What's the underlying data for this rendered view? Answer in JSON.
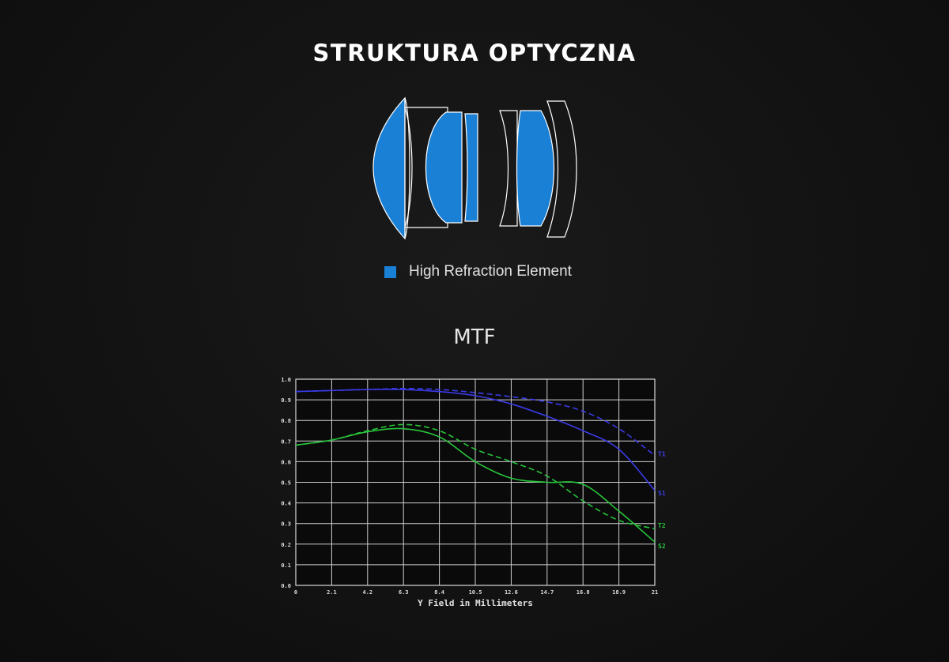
{
  "header": {
    "title": "STRUKTURA OPTYCZNA"
  },
  "legend": {
    "label": "High Refraction Element",
    "color": "#1a80d6"
  },
  "mtf": {
    "title": "MTF"
  },
  "chart_data": {
    "type": "line",
    "title": "MTF",
    "xlabel": "Y Field in Millimeters",
    "ylabel": "",
    "xlim": [
      0,
      21
    ],
    "ylim": [
      0,
      1.0
    ],
    "grid": true,
    "x_ticks": [
      "0",
      "2.1",
      "4.2",
      "6.3",
      "8.4",
      "10.5",
      "12.6",
      "14.7",
      "16.8",
      "18.9",
      "21"
    ],
    "y_ticks": [
      "0.0",
      "0.1",
      "0.2",
      "0.3",
      "0.4",
      "0.5",
      "0.6",
      "0.7",
      "0.8",
      "0.9",
      "1.0"
    ],
    "x": [
      0,
      2.1,
      4.2,
      6.3,
      8.4,
      10.5,
      12.6,
      14.7,
      16.8,
      18.9,
      21
    ],
    "series": [
      {
        "name": "T1",
        "color": "#3b3be8",
        "dashed": true,
        "values": [
          0.94,
          0.945,
          0.95,
          0.955,
          0.95,
          0.935,
          0.915,
          0.89,
          0.845,
          0.76,
          0.63
        ]
      },
      {
        "name": "S1",
        "color": "#3b3be8",
        "dashed": false,
        "values": [
          0.94,
          0.945,
          0.95,
          0.95,
          0.94,
          0.92,
          0.88,
          0.82,
          0.75,
          0.66,
          0.46
        ]
      },
      {
        "name": "T2",
        "color": "#27c43a",
        "dashed": true,
        "values": [
          0.68,
          0.705,
          0.75,
          0.78,
          0.75,
          0.66,
          0.6,
          0.53,
          0.41,
          0.315,
          0.275
        ]
      },
      {
        "name": "S2",
        "color": "#27c43a",
        "dashed": false,
        "values": [
          0.68,
          0.705,
          0.745,
          0.76,
          0.72,
          0.6,
          0.52,
          0.5,
          0.49,
          0.36,
          0.21
        ]
      }
    ]
  }
}
